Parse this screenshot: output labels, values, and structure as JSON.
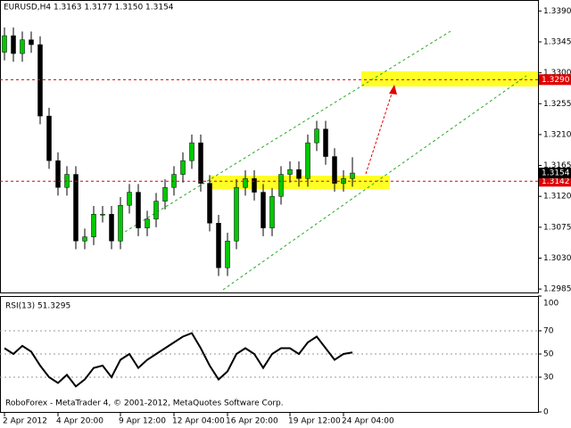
{
  "chart_data": [
    {
      "type": "candlestick",
      "title": "EURUSD,H4  1.3163 1.3177 1.3150 1.3154",
      "x": [
        "2 Apr 2012",
        null,
        null,
        null,
        null,
        null,
        "4 Apr 20:00",
        null,
        null,
        null,
        null,
        null,
        null,
        "9 Apr 12:00",
        null,
        null,
        null,
        null,
        null,
        "12 Apr 04:00",
        null,
        null,
        null,
        null,
        null,
        "16 Apr 20:00",
        null,
        null,
        null,
        null,
        null,
        null,
        "19 Apr 12:00",
        null,
        null,
        null,
        null,
        null,
        "24 Apr 04:00",
        null
      ],
      "open": [
        1.333,
        1.3354,
        1.3328,
        1.3348,
        1.3341,
        1.3237,
        1.3172,
        1.3133,
        1.3152,
        1.3055,
        1.3061,
        1.3094,
        1.3094,
        1.3055,
        1.3107,
        1.3126,
        1.3074,
        1.3087,
        1.3113,
        1.3133,
        1.3152,
        1.3172,
        1.3198,
        1.3139,
        1.3081,
        1.3016,
        1.3055,
        1.3133,
        1.3146,
        1.3126,
        1.3074,
        1.312,
        1.3152,
        1.3159,
        1.3146,
        1.3198,
        1.3218,
        1.3178,
        1.3139,
        1.3146
      ],
      "high": [
        1.3366,
        1.3366,
        1.336,
        1.336,
        1.3353,
        1.3249,
        1.3184,
        1.3164,
        1.3164,
        1.3073,
        1.3106,
        1.3106,
        1.3106,
        1.3119,
        1.3138,
        1.3138,
        1.3099,
        1.3125,
        1.3145,
        1.3164,
        1.3184,
        1.321,
        1.321,
        1.3151,
        1.3093,
        1.3067,
        1.3145,
        1.3158,
        1.3158,
        1.3138,
        1.3132,
        1.3164,
        1.3171,
        1.3171,
        1.321,
        1.323,
        1.323,
        1.319,
        1.3158,
        1.3177
      ],
      "low": [
        1.3318,
        1.3316,
        1.3316,
        1.3329,
        1.3225,
        1.316,
        1.3121,
        1.3121,
        1.3043,
        1.3043,
        1.3049,
        1.3082,
        1.3043,
        1.3043,
        1.3095,
        1.3062,
        1.3062,
        1.3075,
        1.3101,
        1.3121,
        1.314,
        1.316,
        1.3127,
        1.3069,
        1.3004,
        1.3004,
        1.3043,
        1.3121,
        1.3114,
        1.3062,
        1.3062,
        1.3108,
        1.314,
        1.3134,
        1.3134,
        1.3186,
        1.3166,
        1.3127,
        1.3127,
        1.3134
      ],
      "close": [
        1.3354,
        1.3328,
        1.3348,
        1.3341,
        1.3237,
        1.3172,
        1.3133,
        1.3152,
        1.3055,
        1.3061,
        1.3094,
        1.3094,
        1.3055,
        1.3107,
        1.3126,
        1.3074,
        1.3087,
        1.3113,
        1.3133,
        1.3152,
        1.3172,
        1.3198,
        1.3139,
        1.3081,
        1.3016,
        1.3055,
        1.3133,
        1.3146,
        1.3126,
        1.3074,
        1.312,
        1.3152,
        1.3159,
        1.3146,
        1.3198,
        1.3218,
        1.3178,
        1.3139,
        1.3146,
        1.3154
      ],
      "up_color": "#00c800",
      "down_color": "#000000",
      "ylim": [
        1.298,
        1.3406
      ],
      "yticks": [
        {
          "value": 1.339,
          "label": "1.3390"
        },
        1.3345,
        {
          "value": 1.33,
          "label": "1.3300"
        },
        1.3255,
        {
          "value": 1.321,
          "label": "1.3210"
        },
        1.3165,
        {
          "value": 1.312,
          "label": "1.3120"
        },
        1.3075,
        {
          "value": 1.303,
          "label": "1.3030"
        },
        1.2985
      ],
      "levels": [
        {
          "value": 1.329,
          "label": "1.3290"
        },
        1.3142
      ],
      "current": 1.3154
    },
    {
      "type": "line",
      "title": "RSI(13) 51.3295",
      "color": "#000000",
      "values": [
        55,
        50,
        57,
        52,
        40,
        30,
        25,
        32,
        22,
        28,
        38,
        40,
        30,
        45,
        50,
        38,
        45,
        50,
        55,
        60,
        65,
        68,
        55,
        40,
        28,
        35,
        50,
        55,
        50,
        38,
        50,
        55,
        55,
        50,
        60,
        65,
        55,
        45,
        50,
        51.3295
      ],
      "ylim": [
        0,
        100
      ],
      "yticks": [
        100,
        70,
        50,
        30,
        0
      ]
    }
  ],
  "footer": "RoboForex - MetaTrader 4, © 2001-2012, MetaQuotes Software Corp."
}
